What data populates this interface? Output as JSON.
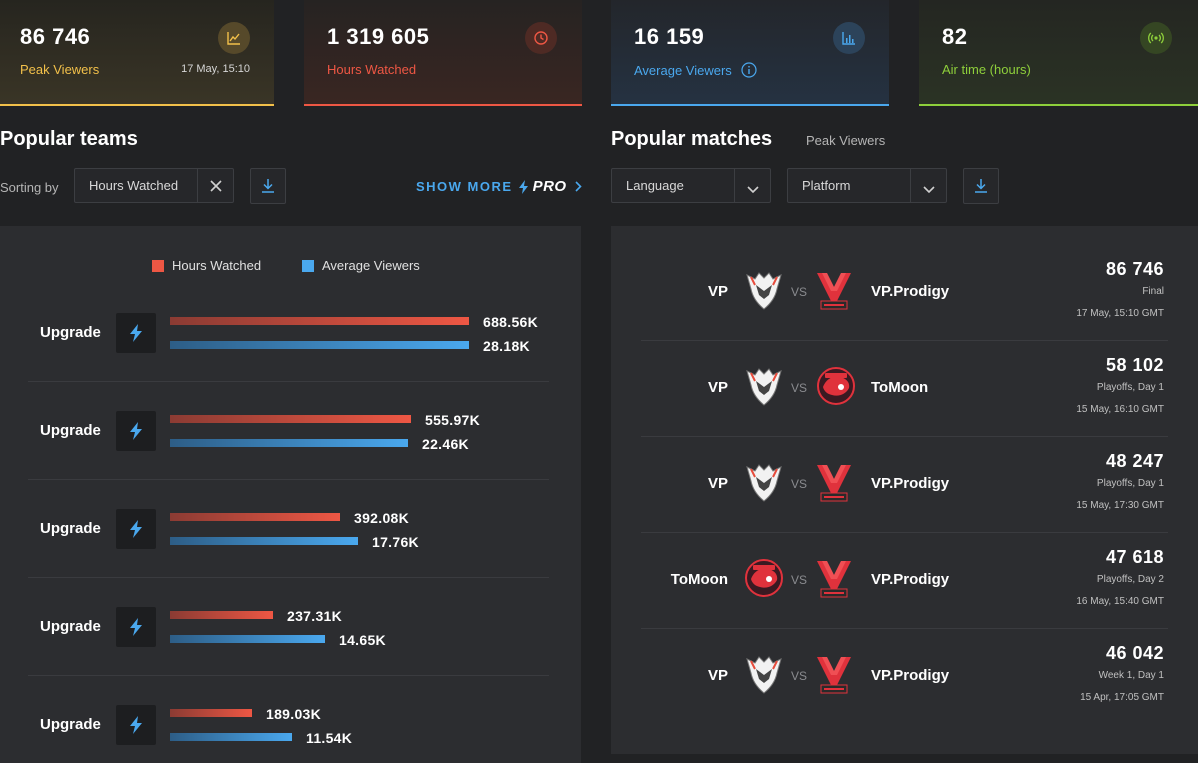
{
  "stats": [
    {
      "value": "86 746",
      "label": "Peak Viewers",
      "meta": "17 May, 15:10",
      "icon": "chart-icon",
      "color": "#f2c04a"
    },
    {
      "value": "1 319 605",
      "label": "Hours Watched",
      "icon": "clock-icon",
      "color": "#ee5744"
    },
    {
      "value": "16 159",
      "label": "Average Viewers",
      "icon": "bar-chart-icon",
      "color": "#4aa8ee"
    },
    {
      "value": "82",
      "label": "Air time (hours)",
      "icon": "broadcast-icon",
      "color": "#8ecf3b"
    }
  ],
  "teams": {
    "title": "Popular teams",
    "sorting_label": "Sorting by",
    "sort_value": "Hours Watched",
    "show_more": "SHOW MORE",
    "pro": "PRO",
    "legend": {
      "hours": "Hours Watched",
      "avg": "Average Viewers"
    },
    "rows": [
      {
        "name": "Upgrade",
        "hours": "688.56K",
        "hours_num": 688.56,
        "avg": "28.18K",
        "avg_num": 28.18
      },
      {
        "name": "Upgrade",
        "hours": "555.97K",
        "hours_num": 555.97,
        "avg": "22.46K",
        "avg_num": 22.46
      },
      {
        "name": "Upgrade",
        "hours": "392.08K",
        "hours_num": 392.08,
        "avg": "17.76K",
        "avg_num": 17.76
      },
      {
        "name": "Upgrade",
        "hours": "237.31K",
        "hours_num": 237.31,
        "avg": "14.65K",
        "avg_num": 14.65
      },
      {
        "name": "Upgrade",
        "hours": "189.03K",
        "hours_num": 189.03,
        "avg": "11.54K",
        "avg_num": 11.54
      }
    ]
  },
  "matches": {
    "title": "Popular matches",
    "subtitle": "Peak Viewers",
    "language": "Language",
    "platform": "Platform",
    "vs": "VS",
    "rows": [
      {
        "team1": "VP",
        "team2": "VP.Prodigy",
        "peak": "86 746",
        "stage": "Final",
        "date": "17 May, 15:10 GMT",
        "logo1": "vp",
        "logo2": "vpp"
      },
      {
        "team1": "VP",
        "team2": "ToMoon",
        "peak": "58 102",
        "stage": "Playoffs, Day 1",
        "date": "15 May, 16:10 GMT",
        "logo1": "vp",
        "logo2": "tomoon"
      },
      {
        "team1": "VP",
        "team2": "VP.Prodigy",
        "peak": "48 247",
        "stage": "Playoffs, Day 1",
        "date": "15 May, 17:30 GMT",
        "logo1": "vp",
        "logo2": "vpp"
      },
      {
        "team1": "ToMoon",
        "team2": "VP.Prodigy",
        "peak": "47 618",
        "stage": "Playoffs, Day 2",
        "date": "16 May, 15:40 GMT",
        "logo1": "tomoon",
        "logo2": "vpp"
      },
      {
        "team1": "VP",
        "team2": "VP.Prodigy",
        "peak": "46 042",
        "stage": "Week 1, Day 1",
        "date": "15 Apr, 17:05 GMT",
        "logo1": "vp",
        "logo2": "vpp"
      }
    ]
  }
}
